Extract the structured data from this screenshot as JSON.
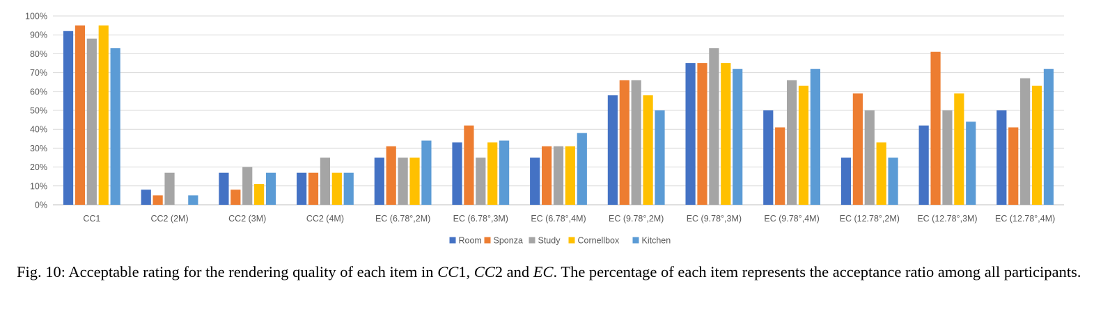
{
  "chart_data": {
    "type": "bar",
    "categories": [
      "CC1",
      "CC2 (2M)",
      "CC2 (3M)",
      "CC2 (4M)",
      "EC (6.78°,2M)",
      "EC (6.78°,3M)",
      "EC (6.78°,4M)",
      "EC (9.78°,2M)",
      "EC (9.78°,3M)",
      "EC (9.78°,4M)",
      "EC (12.78°,2M)",
      "EC (12.78°,3M)",
      "EC (12.78°,4M)"
    ],
    "series": [
      {
        "name": "Room",
        "color": "#4472C4",
        "values": [
          92,
          8,
          17,
          17,
          25,
          33,
          25,
          58,
          75,
          50,
          25,
          42,
          50
        ]
      },
      {
        "name": "Sponza",
        "color": "#ED7D31",
        "values": [
          95,
          5,
          8,
          17,
          31,
          42,
          31,
          66,
          75,
          41,
          59,
          81,
          41
        ]
      },
      {
        "name": "Study",
        "color": "#A5A5A5",
        "values": [
          88,
          17,
          20,
          25,
          25,
          25,
          31,
          66,
          83,
          66,
          50,
          50,
          67
        ]
      },
      {
        "name": "Cornellbox",
        "color": "#FFC000",
        "values": [
          95,
          0,
          11,
          17,
          25,
          33,
          31,
          58,
          75,
          63,
          33,
          59,
          63
        ]
      },
      {
        "name": "Kitchen",
        "color": "#5B9BD5",
        "values": [
          83,
          5,
          17,
          17,
          34,
          34,
          38,
          50,
          72,
          72,
          25,
          44,
          72
        ]
      }
    ],
    "ylim": [
      0,
      100
    ],
    "yticks": [
      "0%",
      "10%",
      "20%",
      "30%",
      "40%",
      "50%",
      "60%",
      "70%",
      "80%",
      "90%",
      "100%"
    ],
    "grid": true,
    "legend_position": "bottom"
  },
  "caption": {
    "prefix": "Fig. 10: Acceptable rating for the rendering quality of each item in ",
    "cc1": "CC",
    "cc1_num": "1, ",
    "cc2": "CC",
    "cc2_num": "2 and ",
    "ec": "EC",
    "suffix": ". The percentage of each item represents the acceptance ratio among all participants."
  }
}
